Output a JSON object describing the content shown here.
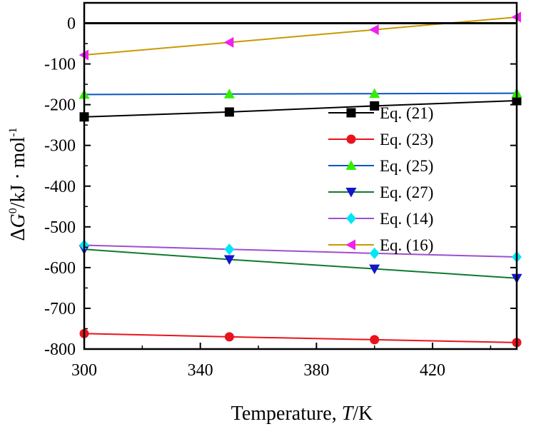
{
  "chart_data": {
    "type": "line",
    "title": "",
    "xlabel_prefix": "Temperature, ",
    "xlabel_var": "T",
    "xlabel_unit": "/K",
    "ylabel_delta": "Δ",
    "ylabel_var": "G",
    "ylabel_sup": "0",
    "ylabel_unit": "/kJ · mol",
    "ylabel_unit_sup": "-1",
    "xlim": [
      300,
      449
    ],
    "ylim": [
      -800,
      50
    ],
    "xticks": [
      300,
      340,
      380,
      420
    ],
    "xtick_labels": [
      "300",
      "340",
      "380",
      "420"
    ],
    "yticks": [
      0,
      -100,
      -200,
      -300,
      -400,
      -500,
      -600,
      -700,
      -800
    ],
    "ytick_labels": [
      "0",
      "-100",
      "-200",
      "-300",
      "-400",
      "-500",
      "-600",
      "-700",
      "-800"
    ],
    "reference_line": 0,
    "x": [
      300,
      350,
      400,
      449
    ],
    "series": [
      {
        "name": "Eq. (21)",
        "marker": "square",
        "line_color": "#000000",
        "marker_color": "#000000",
        "values": [
          -230,
          -218,
          -203,
          -190
        ]
      },
      {
        "name": "Eq. (23)",
        "marker": "circle",
        "line_color": "#e8141b",
        "marker_color": "#e8141b",
        "values": [
          -762,
          -770,
          -777,
          -784
        ]
      },
      {
        "name": "Eq. (25)",
        "marker": "triangle-up",
        "line_color": "#0a55c4",
        "marker_color": "#33ee00",
        "values": [
          -175,
          -174,
          -173,
          -172
        ]
      },
      {
        "name": "Eq. (27)",
        "marker": "triangle-down",
        "line_color": "#0f7a2e",
        "marker_color": "#1515cc",
        "values": [
          -555,
          -580,
          -603,
          -626
        ]
      },
      {
        "name": "Eq. (14)",
        "marker": "diamond",
        "line_color": "#9d4fd0",
        "marker_color": "#00e6f6",
        "values": [
          -545,
          -555,
          -565,
          -574
        ]
      },
      {
        "name": "Eq. (16)",
        "marker": "triangle-left",
        "line_color": "#c89a00",
        "marker_color": "#ee22ee",
        "values": [
          -78,
          -47,
          -16,
          15
        ]
      }
    ],
    "legend_position": "center-right"
  }
}
